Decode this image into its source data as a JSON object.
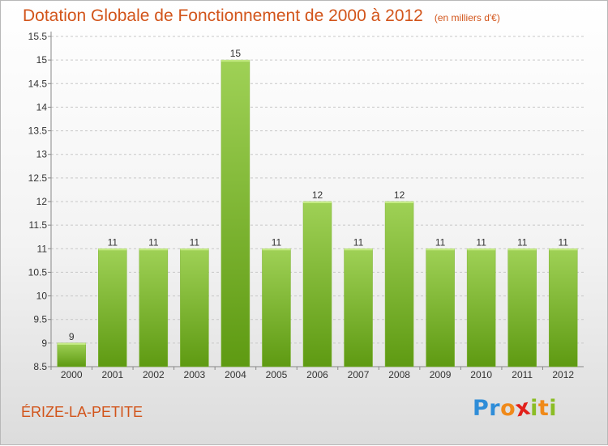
{
  "header": {
    "title": "Dotation Globale de Fonctionnement de 2000 à 2012",
    "unit": "(en milliers d'€)"
  },
  "footer": {
    "place": "ÉRIZE-LA-PETITE",
    "logo_text": "Proxiti",
    "logo_colors": [
      "#2f8dd8",
      "#2f8dd8",
      "#f08a1a",
      "#e2211c",
      "#8bbd25",
      "#f08a1a",
      "#8bbd25"
    ]
  },
  "colors": {
    "title": "#d2541a",
    "bar_light": "#9fd156",
    "bar_dark": "#5e9a12",
    "grid": "#c8c8c8",
    "text": "#333333"
  },
  "chart_data": {
    "type": "bar",
    "categories": [
      "2000",
      "2001",
      "2002",
      "2003",
      "2004",
      "2005",
      "2006",
      "2007",
      "2008",
      "2009",
      "2010",
      "2011",
      "2012"
    ],
    "values": [
      9,
      11,
      11,
      11,
      15,
      11,
      12,
      11,
      12,
      11,
      11,
      11,
      11
    ],
    "data_labels": [
      "9",
      "11",
      "11",
      "11",
      "15",
      "11",
      "12",
      "11",
      "12",
      "11",
      "11",
      "11",
      "11"
    ],
    "yticks": [
      "8.5",
      "9",
      "9.5",
      "10",
      "10.5",
      "11",
      "11.5",
      "12",
      "12.5",
      "13",
      "13.5",
      "14",
      "14.5",
      "15",
      "15.5"
    ],
    "ylim": [
      8.5,
      15.5
    ],
    "grid": true
  }
}
